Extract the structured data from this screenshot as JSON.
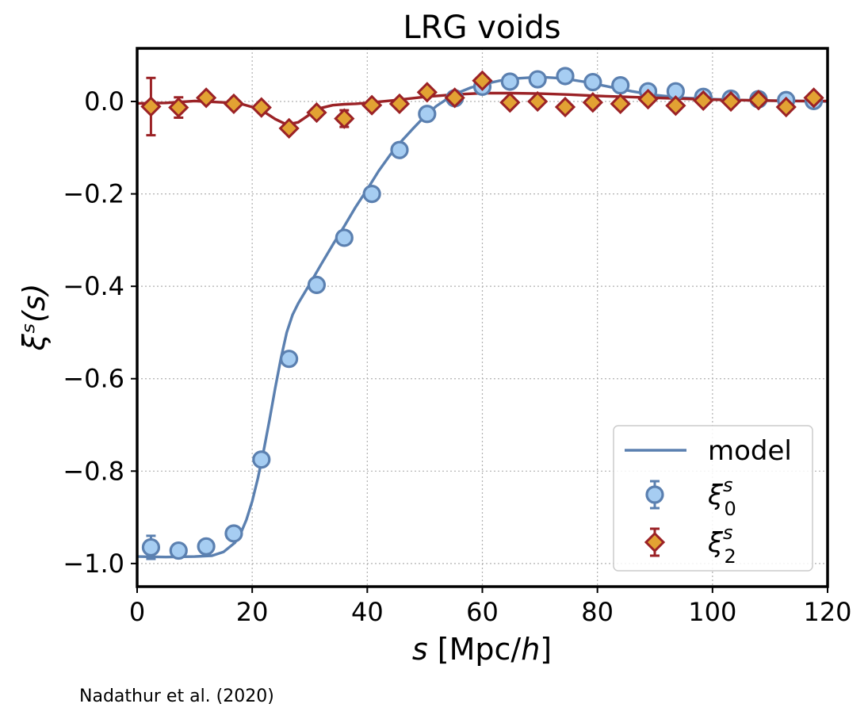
{
  "chart_data": {
    "type": "scatter",
    "title": "LRG voids",
    "xlabel": "s [Mpc/h]",
    "ylabel": "ξˢ(s)",
    "xlim": [
      0,
      120
    ],
    "ylim": [
      -1.05,
      0.115
    ],
    "xticks": [
      0,
      20,
      40,
      60,
      80,
      100,
      120
    ],
    "xtick_labels": [
      "0",
      "20",
      "40",
      "60",
      "80",
      "100",
      "120"
    ],
    "yticks": [
      0.0,
      -0.2,
      -0.4,
      -0.6,
      -0.8,
      -1.0
    ],
    "ytick_labels": [
      "0.0",
      "−0.2",
      "−0.4",
      "−0.6",
      "−0.8",
      "−1.0"
    ],
    "grid": true,
    "legend_position": "lower-right",
    "colors": {
      "model_monopole": "#5b80b0",
      "model_quadrupole": "#9b2226",
      "monopole_fill": "#a6cdf2",
      "monopole_edge": "#5b80b0",
      "quadrupole_fill": "#e2a233",
      "quadrupole_edge": "#9b2226"
    },
    "legend": [
      {
        "label": "model",
        "kind": "line"
      },
      {
        "label": "ξ",
        "sup": "s",
        "sub": "0",
        "kind": "circle"
      },
      {
        "label": "ξ",
        "sup": "s",
        "sub": "2",
        "kind": "diamond"
      }
    ],
    "series": [
      {
        "name": "model",
        "kind": "model-monopole",
        "x": [
          0,
          5,
          10,
          13,
          15,
          17,
          18,
          19,
          20,
          21,
          22,
          23,
          24,
          25,
          26,
          27,
          28,
          30,
          32,
          34,
          36,
          38,
          40,
          42,
          44,
          46,
          48,
          50,
          52,
          55,
          58,
          60,
          63,
          66,
          70,
          74,
          78,
          82,
          86,
          90,
          95,
          100,
          105,
          110,
          115,
          120
        ],
        "y": [
          -0.985,
          -0.986,
          -0.985,
          -0.983,
          -0.975,
          -0.955,
          -0.935,
          -0.905,
          -0.865,
          -0.815,
          -0.755,
          -0.69,
          -0.62,
          -0.555,
          -0.5,
          -0.462,
          -0.437,
          -0.395,
          -0.352,
          -0.31,
          -0.27,
          -0.228,
          -0.19,
          -0.15,
          -0.115,
          -0.085,
          -0.058,
          -0.032,
          -0.01,
          0.015,
          0.03,
          0.037,
          0.045,
          0.05,
          0.053,
          0.05,
          0.042,
          0.032,
          0.022,
          0.014,
          0.008,
          0.005,
          0.003,
          0.002,
          0.001,
          0.0
        ]
      },
      {
        "name": "model",
        "kind": "model-quadrupole",
        "x": [
          0,
          5,
          10,
          15,
          18,
          20,
          22,
          24,
          26,
          28,
          30,
          32,
          34,
          36,
          38,
          40,
          45,
          50,
          55,
          60,
          65,
          70,
          75,
          80,
          85,
          90,
          95,
          100,
          105,
          110,
          115,
          120
        ],
        "y": [
          -0.004,
          -0.003,
          0.001,
          -0.002,
          -0.005,
          -0.012,
          -0.022,
          -0.038,
          -0.05,
          -0.045,
          -0.028,
          -0.014,
          -0.008,
          -0.006,
          -0.005,
          -0.003,
          0.003,
          0.01,
          0.015,
          0.018,
          0.018,
          0.017,
          0.015,
          0.012,
          0.01,
          0.008,
          0.006,
          0.004,
          0.003,
          0.002,
          0.001,
          0.001
        ]
      },
      {
        "name": "ξ0",
        "kind": "monopole",
        "x": [
          2.4,
          7.2,
          12.0,
          16.8,
          21.6,
          26.4,
          31.2,
          36.0,
          40.8,
          45.6,
          50.4,
          55.2,
          60.0,
          64.8,
          69.6,
          74.4,
          79.2,
          84.0,
          88.8,
          93.6,
          98.4,
          103.2,
          108.0,
          112.8,
          117.6
        ],
        "y": [
          -0.965,
          -0.972,
          -0.963,
          -0.935,
          -0.775,
          -0.557,
          -0.397,
          -0.295,
          -0.2,
          -0.105,
          -0.027,
          0.007,
          0.032,
          0.043,
          0.048,
          0.055,
          0.042,
          0.035,
          0.022,
          0.022,
          0.01,
          0.006,
          0.005,
          0.003,
          0.001
        ],
        "err": [
          0.025,
          0.012,
          0.01,
          0.01,
          0.01,
          0.008,
          0.008,
          0.006,
          0.006,
          0.005,
          0.005,
          0.005,
          0.005,
          0.005,
          0.005,
          0.005,
          0.005,
          0.005,
          0.005,
          0.005,
          0.005,
          0.005,
          0.005,
          0.005,
          0.005
        ]
      },
      {
        "name": "ξ2",
        "kind": "quadrupole",
        "x": [
          2.4,
          7.2,
          12.0,
          16.8,
          21.6,
          26.4,
          31.2,
          36.0,
          40.8,
          45.6,
          50.4,
          55.2,
          60.0,
          64.8,
          69.6,
          74.4,
          79.2,
          84.0,
          88.8,
          93.6,
          98.4,
          103.2,
          108.0,
          112.8,
          117.6
        ],
        "y": [
          -0.011,
          -0.013,
          0.008,
          -0.005,
          -0.013,
          -0.058,
          -0.024,
          -0.037,
          -0.008,
          -0.005,
          0.02,
          0.008,
          0.045,
          -0.002,
          0.0,
          -0.012,
          -0.002,
          -0.005,
          0.005,
          -0.009,
          0.002,
          0.0,
          0.003,
          -0.012,
          0.008
        ],
        "err": [
          0.062,
          0.022,
          0.012,
          0.012,
          0.012,
          0.014,
          0.016,
          0.018,
          0.014,
          0.012,
          0.012,
          0.01,
          0.01,
          0.008,
          0.008,
          0.008,
          0.008,
          0.008,
          0.008,
          0.008,
          0.008,
          0.008,
          0.008,
          0.008,
          0.008
        ]
      }
    ]
  },
  "credit": "Nadathur et al. (2020)"
}
